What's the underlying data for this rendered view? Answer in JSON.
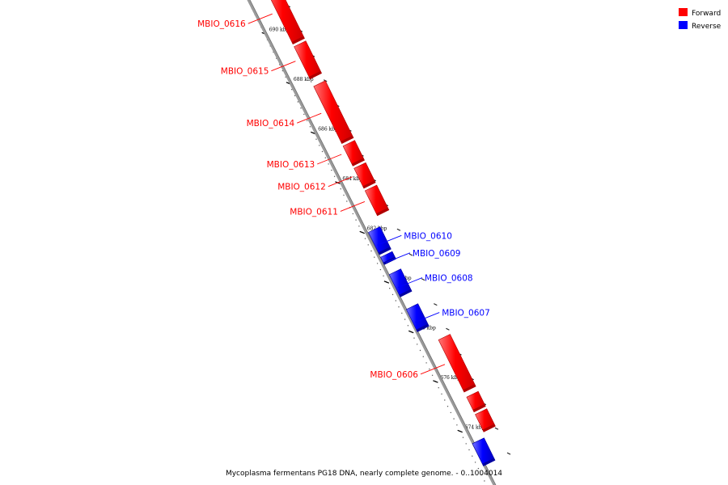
{
  "legend": {
    "items": [
      {
        "label": "Forward",
        "color": "#ff0000"
      },
      {
        "label": "Reverse",
        "color": "#0000ff"
      }
    ]
  },
  "caption": "Mycoplasma fermentans PG18 DNA, nearly complete genome. - 0..1004014",
  "colors": {
    "forward": "#ff0000",
    "forward_dark": "#b00000",
    "forward_light": "#ff8080",
    "reverse": "#0000ff",
    "reverse_dark": "#0000a0",
    "reverse_light": "#8080ff",
    "backbone": "#999999"
  },
  "chart_data": {
    "type": "genome-map",
    "scale_unit": "kbp",
    "visible_range_kbp": [
      673,
      691
    ],
    "ticks": [
      {
        "value": 690,
        "label": "690 kbp"
      },
      {
        "value": 688,
        "label": "688 kbp"
      },
      {
        "value": 686,
        "label": "686 kbp"
      },
      {
        "value": 684,
        "label": "684 kbp"
      },
      {
        "value": 682,
        "label": "682 kbp"
      },
      {
        "value": 680,
        "label": "680 kbp"
      },
      {
        "value": 678,
        "label": "678 kbp"
      },
      {
        "value": 676,
        "label": "676 kbp"
      },
      {
        "value": 674,
        "label": "674 kbp"
      }
    ],
    "genes": [
      {
        "name": "MBIO_0616",
        "strand": "forward",
        "start_kbp": 689.2,
        "end_kbp": 691.5
      },
      {
        "name": "MBIO_0615",
        "strand": "forward",
        "start_kbp": 687.8,
        "end_kbp": 689.1
      },
      {
        "name": "MBIO_0614",
        "strand": "forward",
        "start_kbp": 685.2,
        "end_kbp": 687.5
      },
      {
        "name": "MBIO_0613",
        "strand": "forward",
        "start_kbp": 684.3,
        "end_kbp": 685.1
      },
      {
        "name": "MBIO_0612",
        "strand": "forward",
        "start_kbp": 683.4,
        "end_kbp": 684.2
      },
      {
        "name": "MBIO_0611",
        "strand": "forward",
        "start_kbp": 682.3,
        "end_kbp": 683.3
      },
      {
        "name": "MBIO_0610",
        "strand": "reverse",
        "start_kbp": 681.0,
        "end_kbp": 681.9
      },
      {
        "name": "MBIO_0609",
        "strand": "reverse",
        "start_kbp": 680.6,
        "end_kbp": 680.9
      },
      {
        "name": "MBIO_0608",
        "strand": "reverse",
        "start_kbp": 679.3,
        "end_kbp": 680.2
      },
      {
        "name": "MBIO_0607",
        "strand": "reverse",
        "start_kbp": 677.9,
        "end_kbp": 678.8
      },
      {
        "name": "MBIO_0606",
        "strand": "forward",
        "start_kbp": 675.2,
        "end_kbp": 677.3
      },
      {
        "name": "",
        "strand": "forward",
        "start_kbp": 674.4,
        "end_kbp": 675.0
      },
      {
        "name": "",
        "strand": "forward",
        "start_kbp": 673.6,
        "end_kbp": 674.3
      },
      {
        "name": "",
        "strand": "reverse",
        "start_kbp": 672.5,
        "end_kbp": 673.4
      }
    ]
  }
}
